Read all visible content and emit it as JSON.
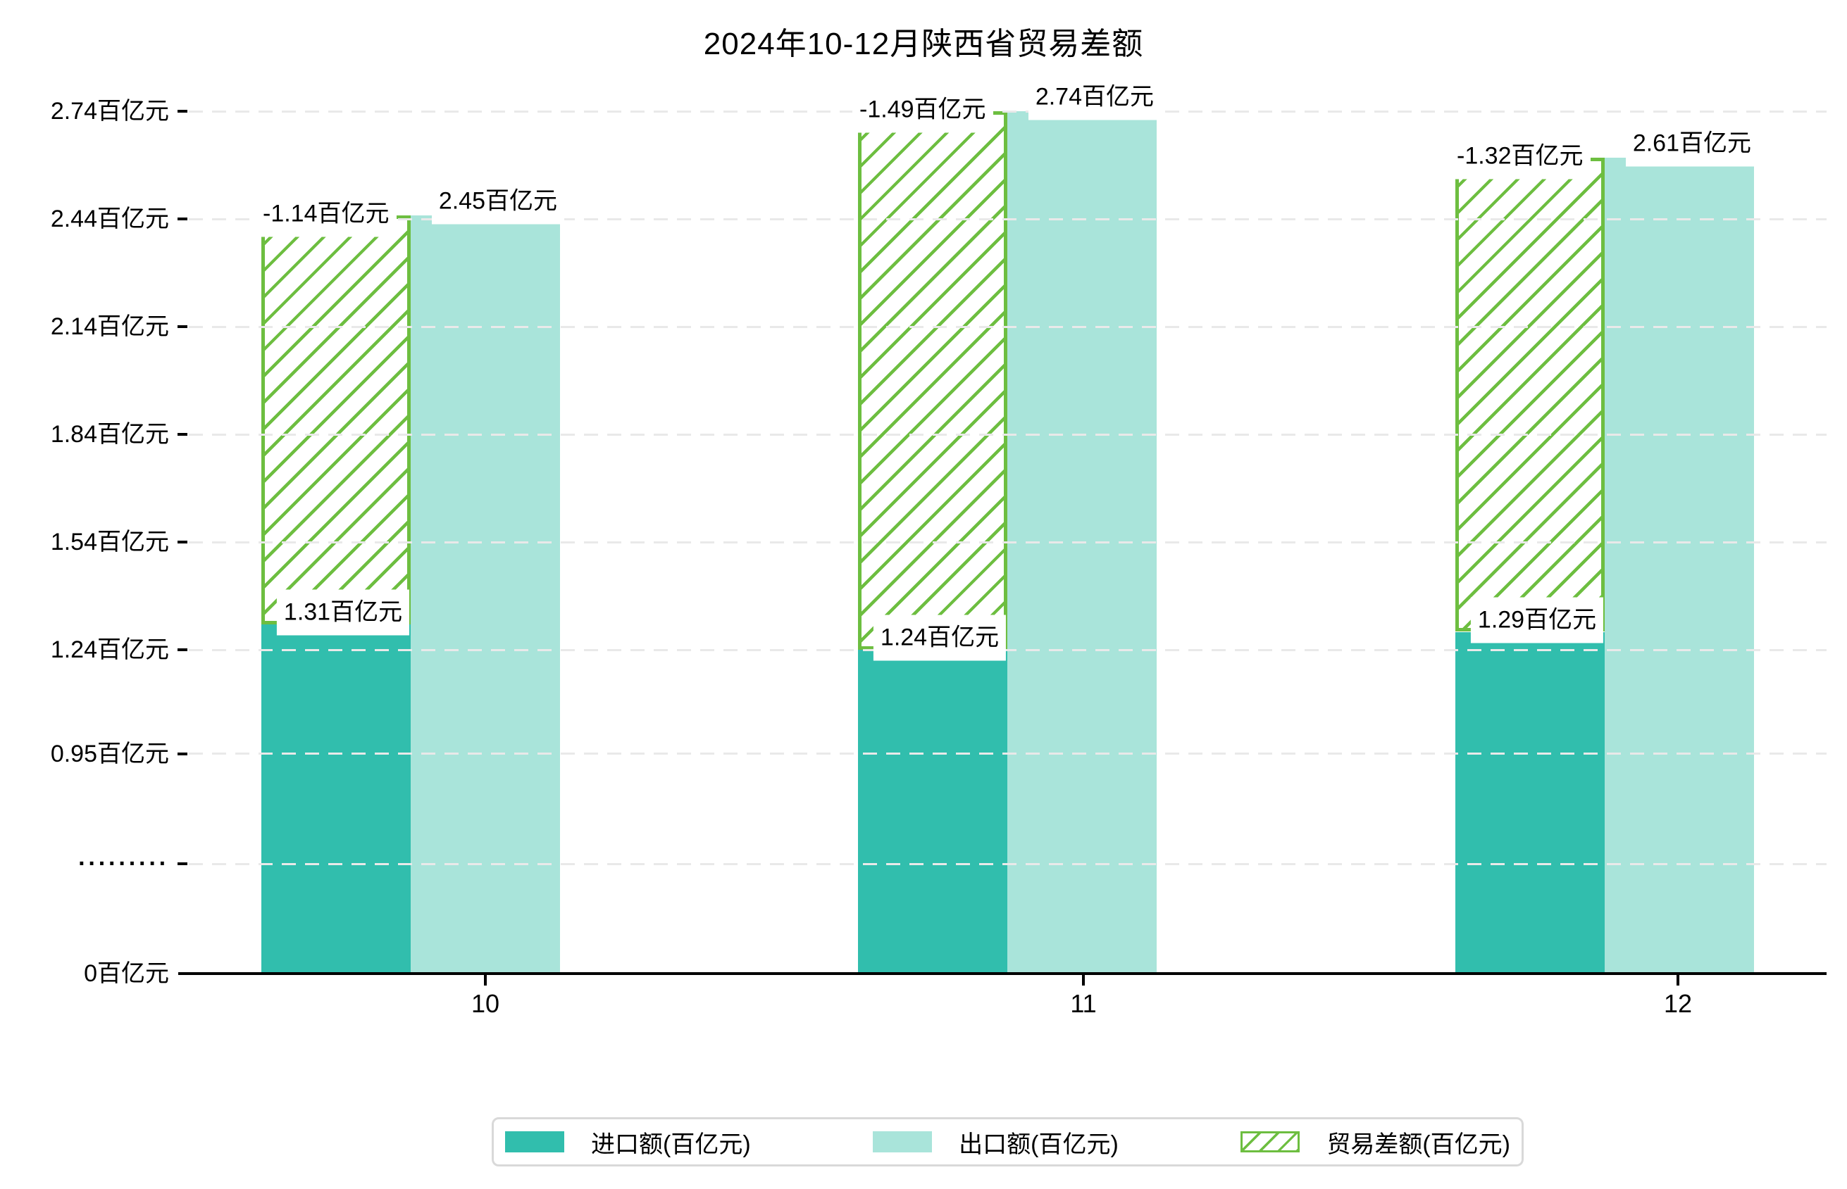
{
  "title": "2024年10-12月陕西省贸易差额",
  "colors": {
    "import_bar": "#31bead",
    "export_bar": "#a9e4da",
    "balance_hatch": "#6dbe40",
    "gridline": "#e9e9e9",
    "axis": "#000000",
    "label_background": "#ffffff",
    "legend_border": "#d9d9d9"
  },
  "y_axis": {
    "unit": "百亿元",
    "ticks": [
      {
        "label": "2.74百亿元",
        "value": 2.74
      },
      {
        "label": "2.44百亿元",
        "value": 2.44
      },
      {
        "label": "2.14百亿元",
        "value": 2.14
      },
      {
        "label": "1.84百亿元",
        "value": 1.84
      },
      {
        "label": "1.54百亿元",
        "value": 1.54
      },
      {
        "label": "1.24百亿元",
        "value": 1.24
      },
      {
        "label": "0.95百亿元",
        "value": 0.95
      }
    ],
    "break_label": "·········",
    "zero_label": "0百亿元"
  },
  "x_axis": {
    "ticks": [
      "10",
      "11",
      "12"
    ]
  },
  "legend": {
    "items": [
      {
        "label": "进口额(百亿元)",
        "style": "solid",
        "color_key": "import_bar"
      },
      {
        "label": "出口额(百亿元)",
        "style": "solid",
        "color_key": "export_bar"
      },
      {
        "label": "贸易差额(百亿元)",
        "style": "hatch",
        "color_key": "balance_hatch"
      }
    ]
  },
  "chart_data": {
    "type": "bar",
    "title": "2024年10-12月陕西省贸易差额",
    "categories": [
      "10",
      "11",
      "12"
    ],
    "series": [
      {
        "name": "进口额(百亿元)",
        "role": "import",
        "values": [
          1.31,
          1.24,
          1.29
        ],
        "data_labels": [
          "1.31百亿元",
          "1.24百亿元",
          "1.29百亿元"
        ]
      },
      {
        "name": "出口额(百亿元)",
        "role": "export",
        "values": [
          2.45,
          2.74,
          2.61
        ],
        "data_labels": [
          "2.45百亿元",
          "2.74百亿元",
          "2.61百亿元"
        ]
      },
      {
        "name": "贸易差额(百亿元)",
        "role": "trade-balance",
        "values": [
          -1.14,
          -1.49,
          -1.32
        ],
        "data_labels": [
          "-1.14百亿元",
          "-1.49百亿元",
          "-1.32百亿元"
        ]
      }
    ],
    "y_ticks": [
      0,
      0.95,
      1.24,
      1.54,
      1.84,
      2.14,
      2.44,
      2.74
    ],
    "axis_break_between": [
      0,
      0.95
    ],
    "ylim": [
      0,
      2.9
    ],
    "grid": "dashed-horizontal",
    "legend_position": "bottom",
    "notes": "贸易差额 drawn as hatched bar spanning from import top to export top; export labels partially occluded by balance labels"
  }
}
